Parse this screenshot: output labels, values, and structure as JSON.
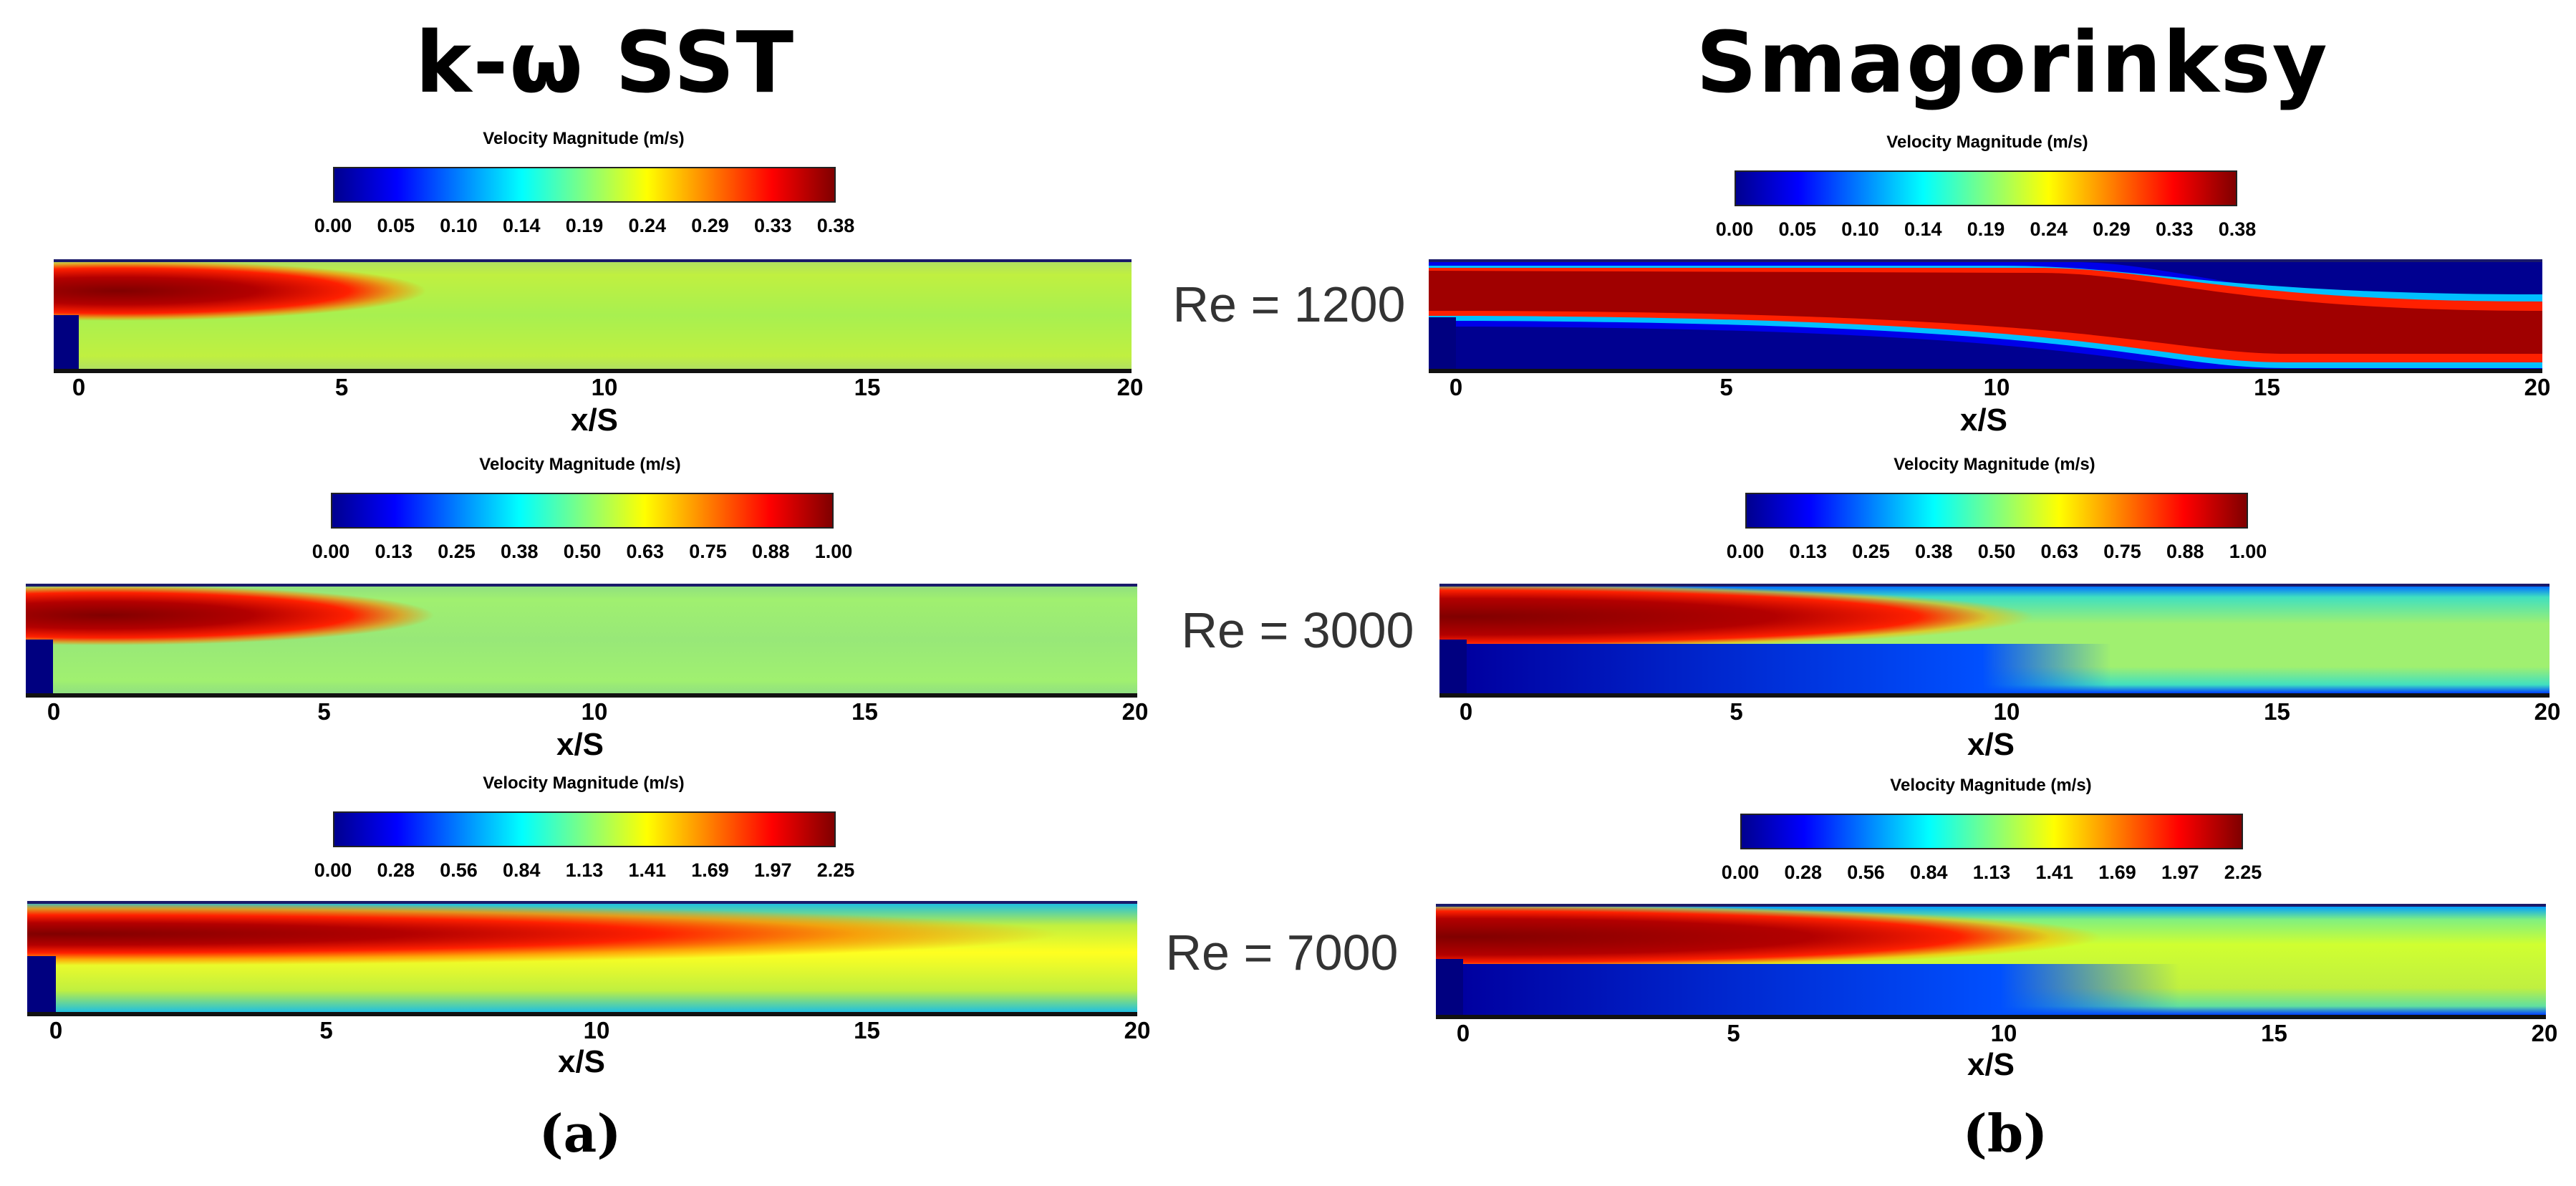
{
  "titles": {
    "left": "k-ω SST",
    "right": "Smagorinksy"
  },
  "colorbar_title": "Velocity Magnitude (m/s)",
  "colorbar_colors": [
    "#00008f",
    "#0000ff",
    "#0080ff",
    "#00ffff",
    "#80ff80",
    "#ffff00",
    "#ff8000",
    "#ff0000",
    "#800000"
  ],
  "colorbar_ticks": {
    "re1200": [
      "0.00",
      "0.05",
      "0.10",
      "0.14",
      "0.19",
      "0.24",
      "0.29",
      "0.33",
      "0.38"
    ],
    "re3000": [
      "0.00",
      "0.13",
      "0.25",
      "0.38",
      "0.50",
      "0.63",
      "0.75",
      "0.88",
      "1.00"
    ],
    "re7000": [
      "0.00",
      "0.28",
      "0.56",
      "0.84",
      "1.13",
      "1.41",
      "1.69",
      "1.97",
      "2.25"
    ]
  },
  "x_ticks": [
    "0",
    "5",
    "10",
    "15",
    "20"
  ],
  "x_label": "x/S",
  "reynolds": {
    "r1": "Re = 1200",
    "r2": "Re = 3000",
    "r3": "Re = 7000"
  },
  "subfigure_labels": {
    "a": "(a)",
    "b": "(b)"
  }
}
